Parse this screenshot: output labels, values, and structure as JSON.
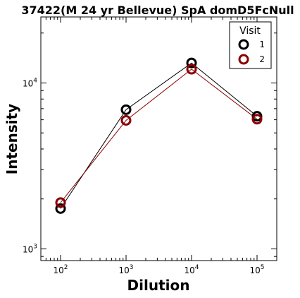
{
  "chart_data": {
    "type": "line",
    "title": "37422(M 24 yr Bellevue) SpA domD5FcNull",
    "xlabel": "Dilution",
    "ylabel": "Intensity",
    "xscale": "log",
    "yscale": "log",
    "xlim": [
      50,
      200000
    ],
    "ylim": [
      850,
      25000
    ],
    "x": [
      100,
      1000,
      10000,
      100000
    ],
    "x_ticks": [
      {
        "value": 100,
        "base": "10",
        "exp": "2"
      },
      {
        "value": 1000,
        "base": "10",
        "exp": "3"
      },
      {
        "value": 10000,
        "base": "10",
        "exp": "4"
      },
      {
        "value": 100000,
        "base": "10",
        "exp": "5"
      }
    ],
    "y_ticks": [
      {
        "value": 1000,
        "base": "10",
        "exp": "3"
      },
      {
        "value": 10000,
        "base": "10",
        "exp": "4"
      }
    ],
    "series": [
      {
        "name": "1",
        "values": [
          1750,
          6900,
          13200,
          6300
        ],
        "color": "#000000"
      },
      {
        "name": "2",
        "values": [
          1900,
          5950,
          12100,
          6050
        ],
        "color": "#8b0000"
      }
    ],
    "legend": {
      "title": "Visit",
      "position": "top-right"
    },
    "grid": false
  }
}
